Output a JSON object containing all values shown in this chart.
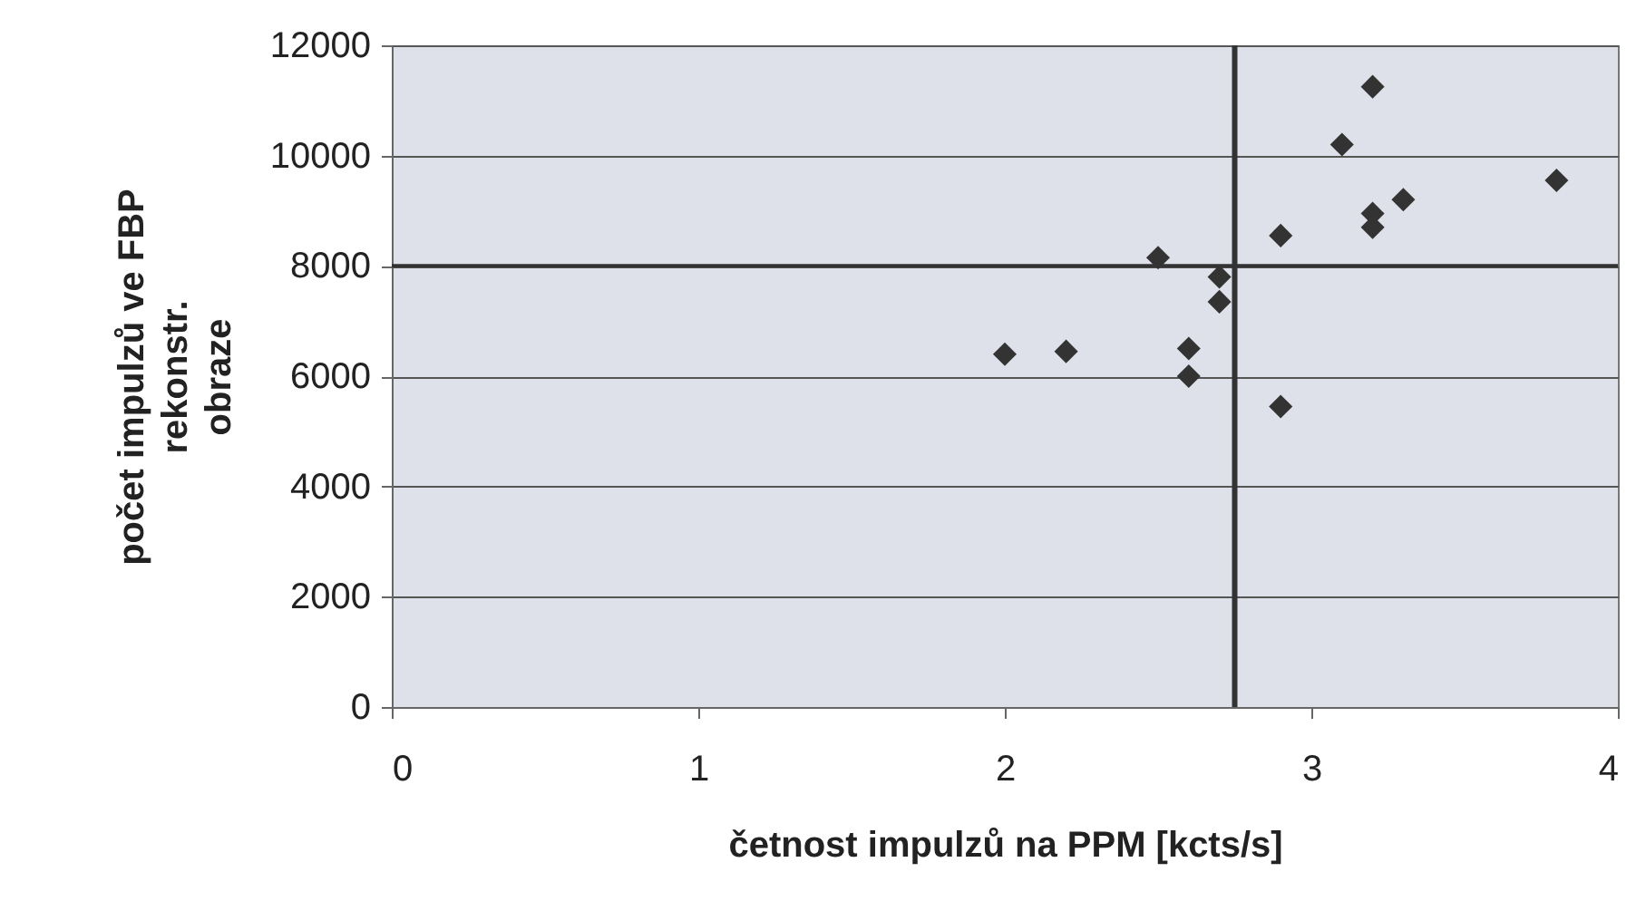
{
  "chart_data": {
    "type": "scatter",
    "xlabel": "četnost impulzů na PPM [kcts/s]",
    "ylabel": "počet impulzů ve FBP\nrekonstr.\nobraze",
    "x": [
      2.0,
      2.2,
      2.5,
      2.6,
      2.6,
      2.7,
      2.7,
      2.9,
      2.9,
      3.1,
      3.2,
      3.2,
      3.2,
      3.3,
      3.8
    ],
    "series": [
      {
        "color": "#333333",
        "values": [
          6400,
          6450,
          8150,
          6500,
          6000,
          7800,
          7350,
          8550,
          5450,
          10200,
          11250,
          8950,
          8700,
          9200,
          9550
        ]
      }
    ],
    "xlim": [
      0,
      4
    ],
    "xticks": [
      0,
      1,
      2,
      3,
      4
    ],
    "ylim": [
      0,
      12000
    ],
    "yticks": [
      0,
      2000,
      4000,
      6000,
      8000,
      10000,
      12000
    ],
    "grid": "y",
    "marker": "diamond",
    "ref_lines": [
      {
        "axis": "x",
        "value": 2.75,
        "color": "#333333"
      },
      {
        "axis": "y",
        "value": 8000,
        "color": "#333333"
      }
    ]
  }
}
